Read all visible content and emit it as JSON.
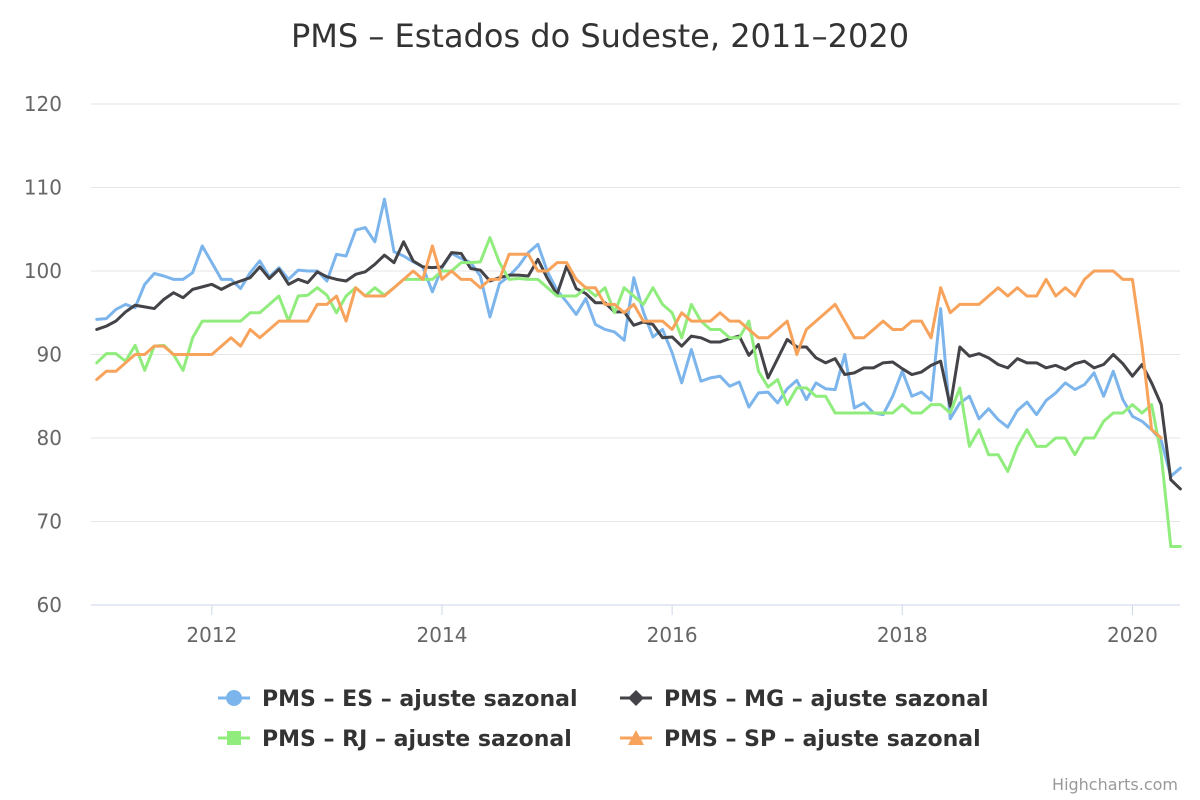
{
  "credits": "Highcharts.com",
  "chart_data": {
    "type": "line",
    "title": "PMS – Estados do Sudeste, 2011–2020",
    "xlabel": "",
    "ylabel": "",
    "x_start": "2011-01",
    "x_end": "2020-05",
    "x_ticks": [
      "2012",
      "2014",
      "2016",
      "2018",
      "2020"
    ],
    "ylim": [
      60,
      120
    ],
    "y_ticks": [
      "60",
      "70",
      "80",
      "90",
      "100",
      "110",
      "120"
    ],
    "grid": true,
    "legend_position": "bottom",
    "series": [
      {
        "name": "PMS – ES – ajuste sazonal",
        "color": "#7cb5ec",
        "marker": "circle",
        "values": [
          94.2,
          94.3,
          95.4,
          96.0,
          95.6,
          98.4,
          99.7,
          99.4,
          99.0,
          99.0,
          99.8,
          103.0,
          101.0,
          99.0,
          99.0,
          97.9,
          99.8,
          101.2,
          99.3,
          100.4,
          99.0,
          100.1,
          100.0,
          100.0,
          98.8,
          102.0,
          101.8,
          104.9,
          105.2,
          103.5,
          108.6,
          102.3,
          101.8,
          101.1,
          100.5,
          97.5,
          100.4,
          102.1,
          101.5,
          101.0,
          99.4,
          94.5,
          98.5,
          99.4,
          100.6,
          102.2,
          103.2,
          99.9,
          97.7,
          96.3,
          94.8,
          96.7,
          93.6,
          93.0,
          92.7,
          91.7,
          99.2,
          95.1,
          92.1,
          93.0,
          90.2,
          86.6,
          90.6,
          86.8,
          87.2,
          87.4,
          86.2,
          86.7,
          83.7,
          85.4,
          85.5,
          84.2,
          85.9,
          86.9,
          84.6,
          86.6,
          85.9,
          85.8,
          90.0,
          83.6,
          84.2,
          83.0,
          82.8,
          85.0,
          88.0,
          85.0,
          85.5,
          84.5,
          95.5,
          82.3,
          84.2,
          85.0,
          82.3,
          83.5,
          82.2,
          81.3,
          83.3,
          84.3,
          82.8,
          84.5,
          85.4,
          86.6,
          85.8,
          86.4,
          87.8,
          85.0,
          88.0,
          84.6,
          82.6,
          82.0,
          81.0,
          79.7,
          75.4,
          76.4
        ]
      },
      {
        "name": "PMS – MG – ajuste sazonal",
        "color": "#434348",
        "marker": "diamond",
        "values": [
          93.0,
          93.4,
          94.0,
          95.1,
          95.9,
          95.7,
          95.5,
          96.6,
          97.4,
          96.8,
          97.8,
          98.1,
          98.4,
          97.8,
          98.4,
          98.8,
          99.2,
          100.5,
          99.1,
          100.2,
          98.4,
          99.0,
          98.6,
          99.9,
          99.3,
          99.0,
          98.8,
          99.6,
          99.9,
          100.8,
          101.9,
          101.0,
          103.5,
          101.2,
          100.5,
          100.4,
          100.5,
          102.2,
          102.1,
          100.3,
          100.1,
          98.8,
          99.2,
          99.5,
          99.5,
          99.4,
          101.4,
          99.1,
          97.2,
          100.6,
          97.9,
          97.3,
          96.2,
          96.2,
          95.1,
          95.1,
          93.5,
          93.9,
          93.6,
          92.0,
          92.1,
          91.0,
          92.2,
          92.0,
          91.5,
          91.5,
          91.9,
          92.2,
          89.9,
          91.2,
          87.2,
          89.5,
          91.8,
          90.9,
          90.9,
          89.6,
          89.0,
          89.5,
          87.6,
          87.8,
          88.4,
          88.4,
          89.0,
          89.1,
          88.3,
          87.6,
          87.9,
          88.7,
          89.2,
          83.8,
          90.9,
          89.8,
          90.1,
          89.6,
          88.8,
          88.4,
          89.5,
          89.0,
          89.0,
          88.4,
          88.7,
          88.2,
          88.9,
          89.2,
          88.4,
          88.8,
          90.0,
          88.9,
          87.4,
          88.8,
          86.6,
          84.0,
          75.0,
          73.9
        ]
      },
      {
        "name": "PMS – RJ – ajuste sazonal",
        "color": "#90ed7d",
        "marker": "square",
        "values": [
          89.0,
          90.1,
          90.1,
          89.2,
          91.1,
          88.1,
          91.0,
          91.1,
          90.0,
          88.1,
          92.0,
          94.0,
          94.0,
          94.0,
          94.0,
          94.0,
          95.0,
          95.0,
          96.0,
          97.0,
          94.0,
          97.0,
          97.1,
          98.0,
          97.1,
          95.0,
          97.0,
          98.0,
          97.0,
          98.0,
          97.1,
          98.0,
          99.0,
          99.0,
          99.0,
          99.0,
          100.0,
          100.0,
          101.0,
          101.0,
          101.1,
          104.0,
          101.0,
          99.0,
          99.1,
          99.0,
          99.0,
          98.0,
          97.0,
          97.0,
          97.0,
          98.0,
          97.0,
          98.0,
          95.0,
          98.0,
          97.0,
          96.0,
          98.0,
          96.0,
          95.0,
          92.0,
          96.0,
          94.0,
          93.0,
          93.0,
          92.0,
          92.0,
          94.0,
          88.0,
          86.1,
          87.0,
          84.0,
          86.0,
          86.0,
          85.0,
          85.0,
          83.0,
          83.0,
          83.0,
          83.0,
          83.0,
          83.0,
          83.0,
          84.0,
          83.0,
          83.0,
          84.0,
          84.0,
          83.0,
          86.0,
          79.0,
          81.0,
          78.0,
          78.0,
          76.0,
          79.0,
          81.0,
          79.0,
          79.0,
          80.0,
          80.0,
          78.0,
          80.0,
          80.0,
          82.0,
          83.0,
          83.0,
          84.0,
          83.0,
          84.0,
          78.0,
          67.0,
          67.0
        ]
      },
      {
        "name": "PMS – SP – ajuste sazonal",
        "color": "#f7a35c",
        "marker": "triangle",
        "values": [
          87.0,
          88.0,
          88.0,
          89.0,
          90.0,
          90.0,
          91.0,
          91.0,
          90.0,
          90.0,
          90.0,
          90.0,
          90.0,
          91.0,
          92.0,
          91.0,
          93.0,
          92.0,
          93.0,
          94.0,
          94.0,
          94.0,
          94.0,
          96.0,
          96.0,
          97.0,
          94.0,
          98.0,
          97.0,
          97.0,
          97.0,
          98.0,
          99.0,
          100.0,
          99.0,
          103.0,
          99.0,
          100.0,
          99.0,
          99.0,
          98.0,
          99.0,
          99.0,
          102.0,
          102.0,
          102.0,
          100.0,
          100.0,
          101.0,
          101.0,
          99.0,
          98.0,
          98.0,
          96.0,
          96.0,
          95.0,
          96.0,
          94.0,
          94.0,
          94.0,
          93.0,
          95.0,
          94.0,
          94.0,
          94.0,
          95.0,
          94.0,
          94.0,
          93.0,
          92.0,
          92.0,
          93.0,
          94.0,
          90.0,
          93.0,
          94.0,
          95.0,
          96.0,
          94.0,
          92.0,
          92.0,
          93.0,
          94.0,
          93.0,
          93.0,
          94.0,
          94.0,
          92.0,
          98.0,
          95.0,
          96.0,
          96.0,
          96.0,
          97.0,
          98.0,
          97.0,
          98.0,
          97.0,
          97.0,
          99.0,
          97.0,
          98.0,
          97.0,
          99.0,
          100.0,
          100.0,
          100.0,
          99.0,
          99.0,
          91.0,
          81.0,
          80.0
        ]
      }
    ]
  }
}
